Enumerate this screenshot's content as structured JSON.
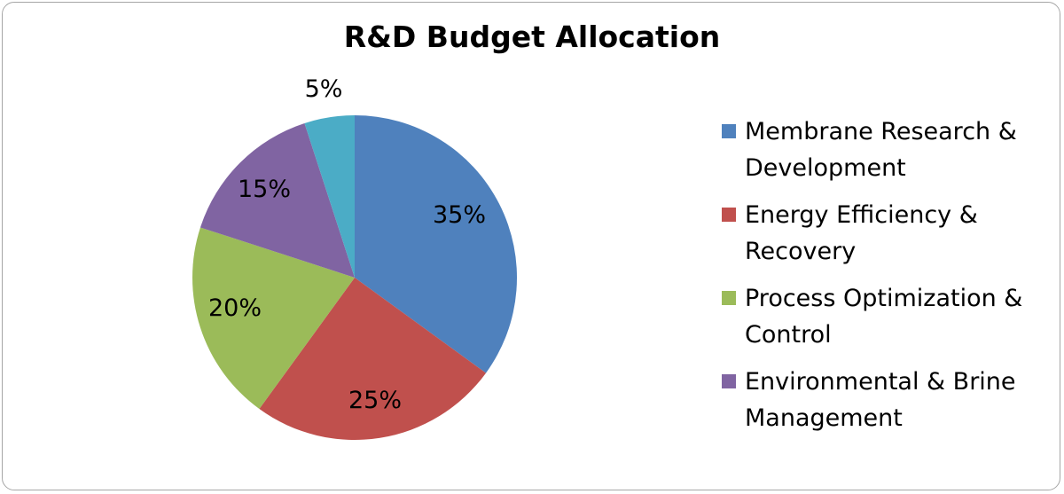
{
  "chart_data": {
    "type": "pie",
    "title": "R&D Budget Allocation",
    "categories": [
      "Membrane Research & Development",
      "Energy Efficiency & Recovery",
      "Process Optimization & Control",
      "Environmental & Brine Management",
      ""
    ],
    "legend_lines": [
      [
        "Membrane Research &",
        "Development"
      ],
      [
        "Energy Efficiency &",
        "Recovery"
      ],
      [
        "Process Optimization &",
        "Control"
      ],
      [
        "Environmental & Brine",
        "Management"
      ]
    ],
    "values": [
      35,
      25,
      20,
      15,
      5
    ],
    "data_labels": [
      "35%",
      "25%",
      "20%",
      "15%",
      "5%"
    ],
    "colors": [
      "#4f81bd",
      "#c0504d",
      "#9bbb59",
      "#8064a2",
      "#4bacc6"
    ],
    "legend_position": "right"
  }
}
